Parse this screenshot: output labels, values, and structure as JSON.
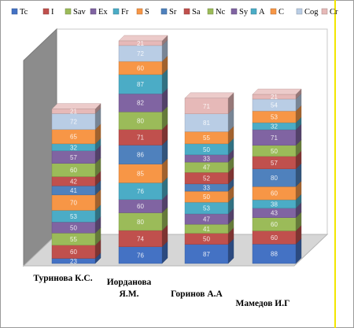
{
  "chart_data": {
    "type": "bar",
    "stacked": true,
    "three_d": true,
    "legend_position": "top",
    "categories": [
      "Туринова К.С.",
      "Иорданова Я.М.",
      "Горинов А.А",
      "Мамедов И.Г"
    ],
    "series": [
      {
        "name": "Tc",
        "color": "#4472c4",
        "values": [
          23,
          76,
          87,
          88
        ]
      },
      {
        "name": "I",
        "color": "#c0504d",
        "values": [
          60,
          74,
          50,
          60
        ]
      },
      {
        "name": "Sav",
        "color": "#9bbb59",
        "values": [
          55,
          80,
          41,
          60
        ]
      },
      {
        "name": "Ex",
        "color": "#8064a2",
        "values": [
          50,
          60,
          47,
          43
        ]
      },
      {
        "name": "Fr",
        "color": "#4bacc6",
        "values": [
          53,
          76,
          53,
          38
        ]
      },
      {
        "name": "S",
        "color": "#f79646",
        "values": [
          70,
          85,
          50,
          60
        ]
      },
      {
        "name": "Sr",
        "color": "#4f81bd",
        "values": [
          41,
          86,
          33,
          80
        ]
      },
      {
        "name": "Sa",
        "color": "#c0504d",
        "values": [
          42,
          71,
          52,
          57
        ]
      },
      {
        "name": "Nc",
        "color": "#9bbb59",
        "values": [
          60,
          80,
          47,
          50
        ]
      },
      {
        "name": "Sy",
        "color": "#8064a2",
        "values": [
          57,
          82,
          33,
          71
        ]
      },
      {
        "name": "A",
        "color": "#4bacc6",
        "values": [
          32,
          87,
          50,
          32
        ]
      },
      {
        "name": "C",
        "color": "#f79646",
        "values": [
          65,
          60,
          55,
          53
        ]
      },
      {
        "name": "Cog",
        "color": "#b9cde5",
        "values": [
          72,
          72,
          81,
          54
        ]
      },
      {
        "name": "Cr",
        "color": "#e6b9b8",
        "values": [
          21,
          21,
          71,
          21
        ]
      }
    ]
  }
}
